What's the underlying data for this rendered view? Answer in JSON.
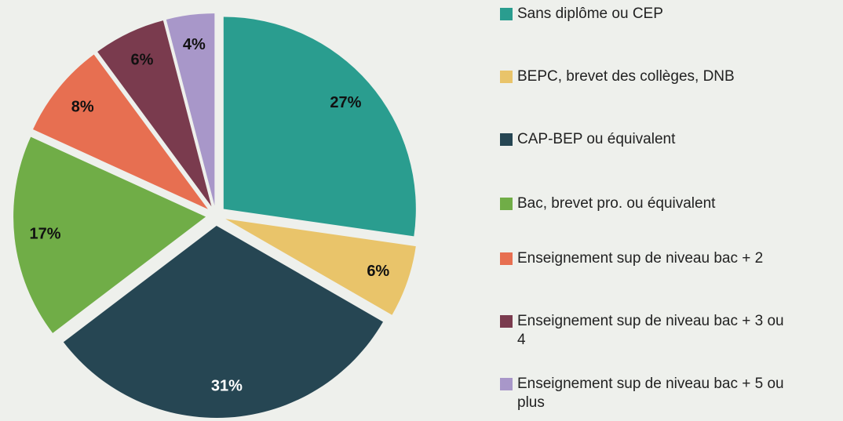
{
  "chart_data": {
    "type": "pie",
    "categories": [
      "Sans diplôme ou CEP",
      "BEPC, brevet des collèges, DNB",
      "CAP-BEP ou équivalent",
      "Bac, brevet pro. ou équivalent",
      "Enseignement sup de niveau bac + 2",
      "Enseignement sup de niveau bac + 3 ou 4",
      "Enseignement sup de niveau bac + 5 ou plus"
    ],
    "values": [
      27,
      6,
      31,
      17,
      8,
      6,
      4
    ],
    "value_labels": [
      "27%",
      "6%",
      "31%",
      "17%",
      "8%",
      "6%",
      "4%"
    ],
    "colors": [
      "#2a9d8f",
      "#e9c46a",
      "#264653",
      "#70ad47",
      "#e76f51",
      "#7a3b4e",
      "#a897c9"
    ],
    "legend": "right"
  }
}
